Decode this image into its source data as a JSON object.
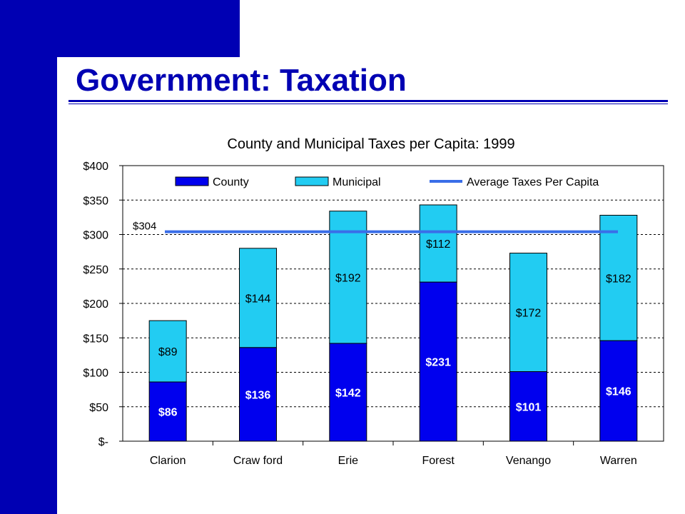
{
  "slide": {
    "title": "Government:  Taxation"
  },
  "colors": {
    "frame": "#0000b3",
    "county": "#0000ee",
    "municipal": "#22ccf2",
    "average_line": "#3a6ee8"
  },
  "chart_data": {
    "type": "bar",
    "stacked": true,
    "title": "County and Municipal Taxes per Capita: 1999",
    "xlabel": "",
    "ylabel": "",
    "categories": [
      "Clarion",
      "Craw ford",
      "Erie",
      "Forest",
      "Venango",
      "Warren"
    ],
    "series": [
      {
        "name": "County",
        "values": [
          86,
          136,
          142,
          231,
          101,
          146
        ],
        "labels": [
          "$86",
          "$136",
          "$142",
          "$231",
          "$101",
          "$146"
        ]
      },
      {
        "name": "Municipal",
        "values": [
          89,
          144,
          192,
          112,
          172,
          182
        ],
        "labels": [
          "$89",
          "$144",
          "$192",
          "$112",
          "$172",
          "$182"
        ]
      }
    ],
    "average": {
      "name": "Average Taxes Per Capita",
      "value": 304,
      "label": "$304"
    },
    "ylim": [
      0,
      400
    ],
    "yticks": [
      0,
      50,
      100,
      150,
      200,
      250,
      300,
      350,
      400
    ],
    "ytick_labels": [
      "$-",
      "$50",
      "$100",
      "$150",
      "$200",
      "$250",
      "$300",
      "$350",
      "$400"
    ],
    "grid": true,
    "legend_position": "top"
  }
}
